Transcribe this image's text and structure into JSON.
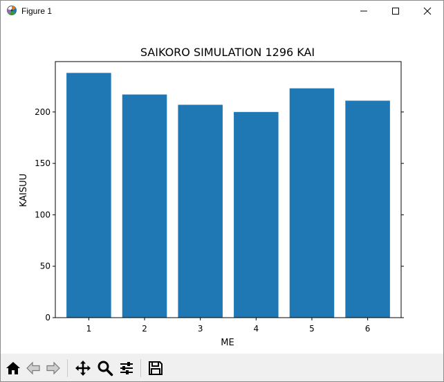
{
  "window": {
    "title": "Figure 1",
    "app_icon": "matplotlib-icon",
    "controls": [
      "minimize-icon",
      "maximize-icon",
      "close-icon"
    ]
  },
  "chart_data": {
    "type": "bar",
    "title": "SAIKORO SIMULATION 1296 KAI",
    "xlabel": "ME",
    "ylabel": "KAISUU",
    "categories": [
      "1",
      "2",
      "3",
      "4",
      "5",
      "6"
    ],
    "values": [
      238,
      217,
      207,
      200,
      223,
      211
    ],
    "ylim": [
      0,
      249
    ],
    "yticks": [
      0,
      50,
      100,
      150,
      200
    ],
    "bar_color": "#1f77b4",
    "grid": false
  },
  "toolbar": {
    "items": [
      {
        "name": "home-button",
        "icon": "home-icon"
      },
      {
        "name": "back-button",
        "icon": "arrow-left-icon"
      },
      {
        "name": "forward-button",
        "icon": "arrow-right-icon"
      },
      {
        "name": "pan-button",
        "icon": "move-icon"
      },
      {
        "name": "zoom-button",
        "icon": "magnifier-icon"
      },
      {
        "name": "configure-subplots-button",
        "icon": "sliders-icon"
      },
      {
        "name": "save-button",
        "icon": "floppy-disk-icon"
      }
    ],
    "coordinates": ""
  }
}
